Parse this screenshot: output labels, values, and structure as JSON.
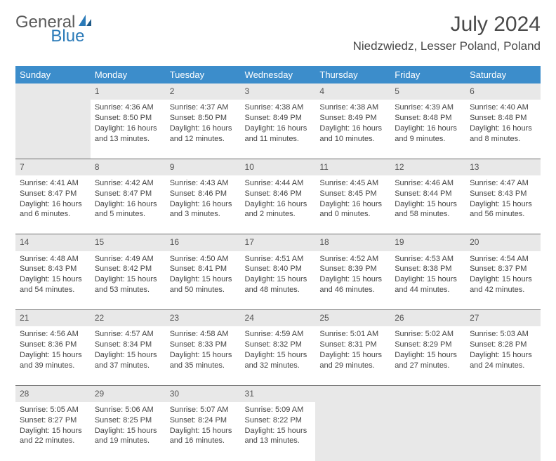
{
  "logo": {
    "text1": "General",
    "text2": "Blue"
  },
  "title": "July 2024",
  "location": "Niedzwiedz, Lesser Poland, Poland",
  "weekdays": [
    "Sunday",
    "Monday",
    "Tuesday",
    "Wednesday",
    "Thursday",
    "Friday",
    "Saturday"
  ],
  "colors": {
    "header_bg": "#3c8dcb",
    "header_text": "#ffffff",
    "date_bg": "#e8e8e8",
    "divider": "#808080",
    "logo_blue": "#2a7ab8",
    "logo_gray": "#5a5a5a"
  },
  "weeks": [
    [
      null,
      {
        "n": "1",
        "sr": "Sunrise: 4:36 AM",
        "ss": "Sunset: 8:50 PM",
        "d1": "Daylight: 16 hours",
        "d2": "and 13 minutes."
      },
      {
        "n": "2",
        "sr": "Sunrise: 4:37 AM",
        "ss": "Sunset: 8:50 PM",
        "d1": "Daylight: 16 hours",
        "d2": "and 12 minutes."
      },
      {
        "n": "3",
        "sr": "Sunrise: 4:38 AM",
        "ss": "Sunset: 8:49 PM",
        "d1": "Daylight: 16 hours",
        "d2": "and 11 minutes."
      },
      {
        "n": "4",
        "sr": "Sunrise: 4:38 AM",
        "ss": "Sunset: 8:49 PM",
        "d1": "Daylight: 16 hours",
        "d2": "and 10 minutes."
      },
      {
        "n": "5",
        "sr": "Sunrise: 4:39 AM",
        "ss": "Sunset: 8:48 PM",
        "d1": "Daylight: 16 hours",
        "d2": "and 9 minutes."
      },
      {
        "n": "6",
        "sr": "Sunrise: 4:40 AM",
        "ss": "Sunset: 8:48 PM",
        "d1": "Daylight: 16 hours",
        "d2": "and 8 minutes."
      }
    ],
    [
      {
        "n": "7",
        "sr": "Sunrise: 4:41 AM",
        "ss": "Sunset: 8:47 PM",
        "d1": "Daylight: 16 hours",
        "d2": "and 6 minutes."
      },
      {
        "n": "8",
        "sr": "Sunrise: 4:42 AM",
        "ss": "Sunset: 8:47 PM",
        "d1": "Daylight: 16 hours",
        "d2": "and 5 minutes."
      },
      {
        "n": "9",
        "sr": "Sunrise: 4:43 AM",
        "ss": "Sunset: 8:46 PM",
        "d1": "Daylight: 16 hours",
        "d2": "and 3 minutes."
      },
      {
        "n": "10",
        "sr": "Sunrise: 4:44 AM",
        "ss": "Sunset: 8:46 PM",
        "d1": "Daylight: 16 hours",
        "d2": "and 2 minutes."
      },
      {
        "n": "11",
        "sr": "Sunrise: 4:45 AM",
        "ss": "Sunset: 8:45 PM",
        "d1": "Daylight: 16 hours",
        "d2": "and 0 minutes."
      },
      {
        "n": "12",
        "sr": "Sunrise: 4:46 AM",
        "ss": "Sunset: 8:44 PM",
        "d1": "Daylight: 15 hours",
        "d2": "and 58 minutes."
      },
      {
        "n": "13",
        "sr": "Sunrise: 4:47 AM",
        "ss": "Sunset: 8:43 PM",
        "d1": "Daylight: 15 hours",
        "d2": "and 56 minutes."
      }
    ],
    [
      {
        "n": "14",
        "sr": "Sunrise: 4:48 AM",
        "ss": "Sunset: 8:43 PM",
        "d1": "Daylight: 15 hours",
        "d2": "and 54 minutes."
      },
      {
        "n": "15",
        "sr": "Sunrise: 4:49 AM",
        "ss": "Sunset: 8:42 PM",
        "d1": "Daylight: 15 hours",
        "d2": "and 53 minutes."
      },
      {
        "n": "16",
        "sr": "Sunrise: 4:50 AM",
        "ss": "Sunset: 8:41 PM",
        "d1": "Daylight: 15 hours",
        "d2": "and 50 minutes."
      },
      {
        "n": "17",
        "sr": "Sunrise: 4:51 AM",
        "ss": "Sunset: 8:40 PM",
        "d1": "Daylight: 15 hours",
        "d2": "and 48 minutes."
      },
      {
        "n": "18",
        "sr": "Sunrise: 4:52 AM",
        "ss": "Sunset: 8:39 PM",
        "d1": "Daylight: 15 hours",
        "d2": "and 46 minutes."
      },
      {
        "n": "19",
        "sr": "Sunrise: 4:53 AM",
        "ss": "Sunset: 8:38 PM",
        "d1": "Daylight: 15 hours",
        "d2": "and 44 minutes."
      },
      {
        "n": "20",
        "sr": "Sunrise: 4:54 AM",
        "ss": "Sunset: 8:37 PM",
        "d1": "Daylight: 15 hours",
        "d2": "and 42 minutes."
      }
    ],
    [
      {
        "n": "21",
        "sr": "Sunrise: 4:56 AM",
        "ss": "Sunset: 8:36 PM",
        "d1": "Daylight: 15 hours",
        "d2": "and 39 minutes."
      },
      {
        "n": "22",
        "sr": "Sunrise: 4:57 AM",
        "ss": "Sunset: 8:34 PM",
        "d1": "Daylight: 15 hours",
        "d2": "and 37 minutes."
      },
      {
        "n": "23",
        "sr": "Sunrise: 4:58 AM",
        "ss": "Sunset: 8:33 PM",
        "d1": "Daylight: 15 hours",
        "d2": "and 35 minutes."
      },
      {
        "n": "24",
        "sr": "Sunrise: 4:59 AM",
        "ss": "Sunset: 8:32 PM",
        "d1": "Daylight: 15 hours",
        "d2": "and 32 minutes."
      },
      {
        "n": "25",
        "sr": "Sunrise: 5:01 AM",
        "ss": "Sunset: 8:31 PM",
        "d1": "Daylight: 15 hours",
        "d2": "and 29 minutes."
      },
      {
        "n": "26",
        "sr": "Sunrise: 5:02 AM",
        "ss": "Sunset: 8:29 PM",
        "d1": "Daylight: 15 hours",
        "d2": "and 27 minutes."
      },
      {
        "n": "27",
        "sr": "Sunrise: 5:03 AM",
        "ss": "Sunset: 8:28 PM",
        "d1": "Daylight: 15 hours",
        "d2": "and 24 minutes."
      }
    ],
    [
      {
        "n": "28",
        "sr": "Sunrise: 5:05 AM",
        "ss": "Sunset: 8:27 PM",
        "d1": "Daylight: 15 hours",
        "d2": "and 22 minutes."
      },
      {
        "n": "29",
        "sr": "Sunrise: 5:06 AM",
        "ss": "Sunset: 8:25 PM",
        "d1": "Daylight: 15 hours",
        "d2": "and 19 minutes."
      },
      {
        "n": "30",
        "sr": "Sunrise: 5:07 AM",
        "ss": "Sunset: 8:24 PM",
        "d1": "Daylight: 15 hours",
        "d2": "and 16 minutes."
      },
      {
        "n": "31",
        "sr": "Sunrise: 5:09 AM",
        "ss": "Sunset: 8:22 PM",
        "d1": "Daylight: 15 hours",
        "d2": "and 13 minutes."
      },
      null,
      null,
      null
    ]
  ]
}
